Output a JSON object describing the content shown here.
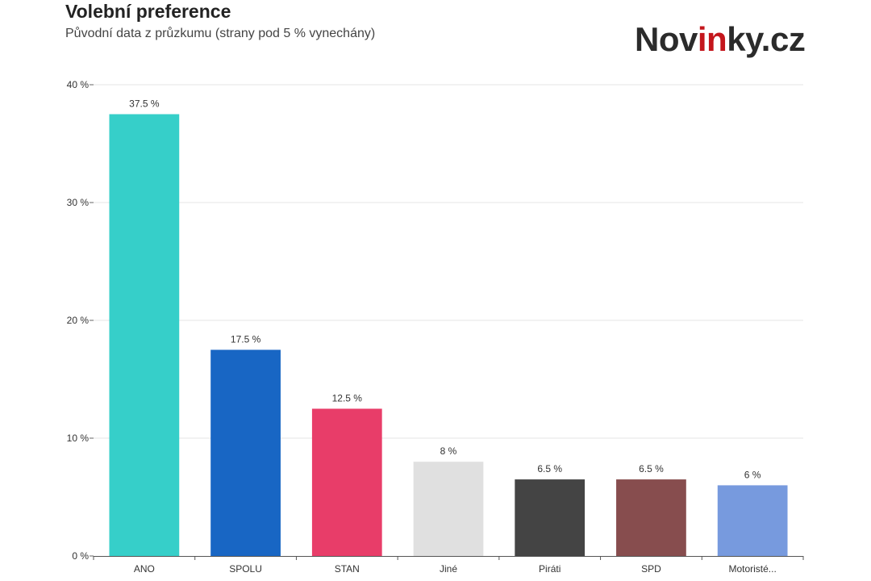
{
  "header": {
    "title": "Volební preference",
    "subtitle": "Původní data z průzkumu (strany pod 5 % vynechány)"
  },
  "logo": {
    "part1": "Nov",
    "accent": "in",
    "part2": "ky.cz"
  },
  "chart_data": {
    "type": "bar",
    "categories": [
      "ANO",
      "SPOLU",
      "STAN",
      "Jiné",
      "Piráti",
      "SPD",
      "Motoristé..."
    ],
    "values": [
      37.5,
      17.5,
      12.5,
      8,
      6.5,
      6.5,
      6
    ],
    "value_labels": [
      "37.5 %",
      "17.5 %",
      "12.5 %",
      "8 %",
      "6.5 %",
      "6.5 %",
      "6 %"
    ],
    "colors": [
      "#36cfc9",
      "#1866c4",
      "#e83d69",
      "#e0e0e0",
      "#444444",
      "#874d4e",
      "#779ade"
    ],
    "ylim": [
      0,
      40
    ],
    "yticks": [
      0,
      10,
      20,
      30,
      40
    ],
    "ytick_labels": [
      "0 %",
      "10 %",
      "20 %",
      "30 %",
      "40 %"
    ],
    "grid": true,
    "legend": "none"
  }
}
